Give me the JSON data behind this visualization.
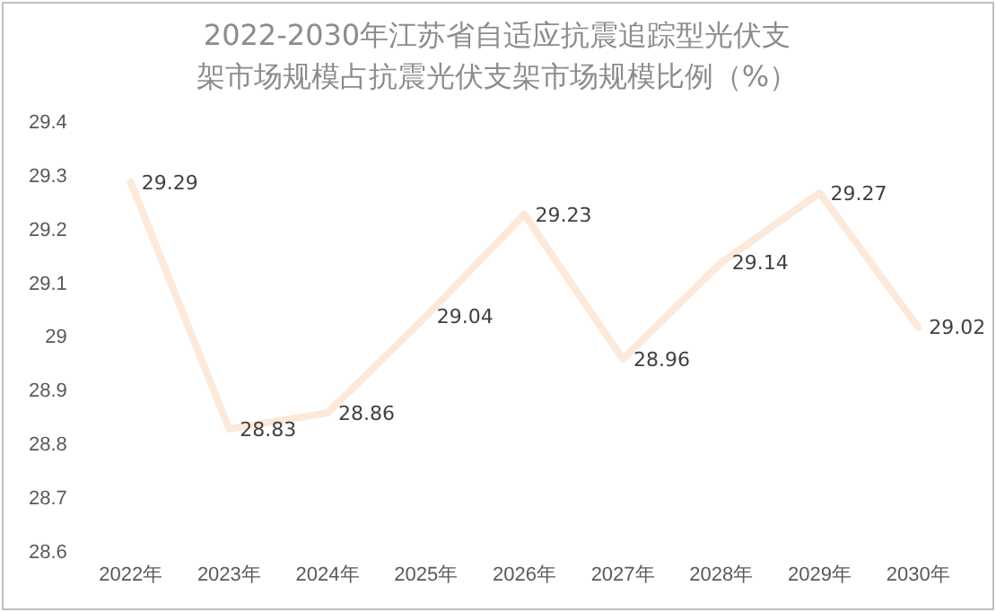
{
  "chart_data": {
    "type": "line",
    "title": "2022-2030年江苏省自适应抗震追踪型光伏支架市场规模占抗震光伏支架市场规模比例（%）",
    "categories": [
      "2022年",
      "2023年",
      "2024年",
      "2025年",
      "2026年",
      "2027年",
      "2028年",
      "2029年",
      "2030年"
    ],
    "series": [
      {
        "color": "#fde9d9",
        "values": [
          29.29,
          28.83,
          28.86,
          29.04,
          29.23,
          28.96,
          29.14,
          29.27,
          29.02
        ]
      }
    ],
    "ylim": [
      28.6,
      29.4
    ],
    "yticks": [
      28.6,
      28.7,
      28.8,
      28.9,
      29,
      29.1,
      29.2,
      29.3,
      29.4
    ],
    "grid": false,
    "legend": false,
    "marker": "none",
    "line_style": "solid",
    "data_labels": true
  }
}
